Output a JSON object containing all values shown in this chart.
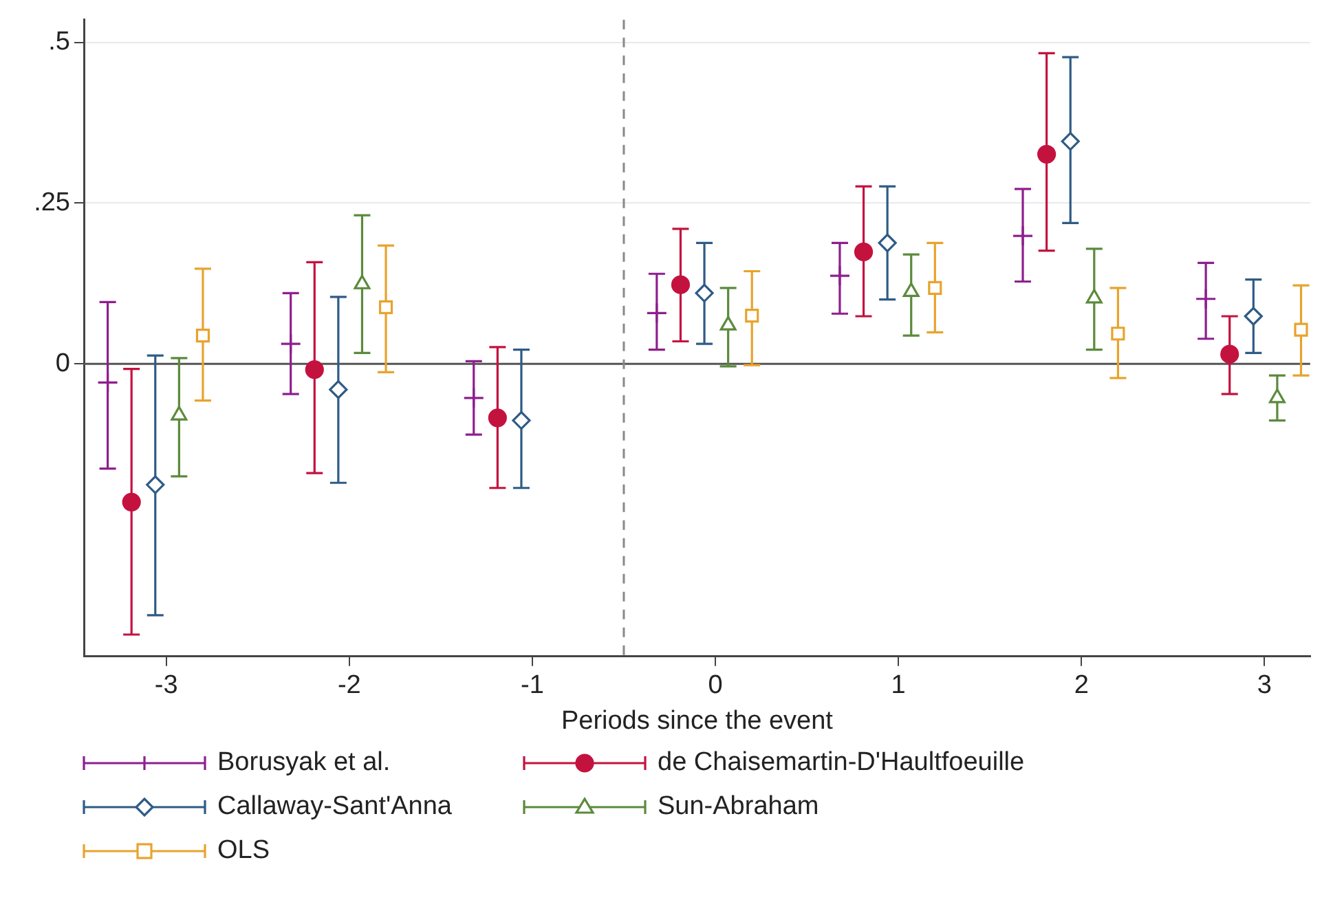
{
  "chart_data": {
    "type": "scatter",
    "xlabel": "Periods since the event",
    "xlim": [
      -3.45,
      3.25
    ],
    "ylim": [
      -0.455,
      0.535
    ],
    "xticks": [
      -3,
      -2,
      -1,
      0,
      1,
      2,
      3
    ],
    "yticks": [
      0,
      {
        "value": 0.25,
        "label": ".25"
      },
      {
        "value": 0.5,
        "label": ".5"
      }
    ],
    "grid": "y",
    "legend": "bottom",
    "ref_lines": [
      {
        "axis": "y",
        "value": 0,
        "color": "#555555",
        "line_style": "solid"
      },
      {
        "axis": "x",
        "value": -0.5,
        "color": "#888888",
        "line_style": "dashed"
      }
    ],
    "series": [
      {
        "name": "Borusyak et al.",
        "color": "#8e1f8e",
        "marker": "cross",
        "x": [
          -3.32,
          -2.32,
          -1.32,
          -0.32,
          0.68,
          1.68,
          2.68
        ],
        "values": [
          -0.029,
          0.031,
          -0.053,
          0.079,
          0.137,
          0.199,
          0.101
        ],
        "errors": [
          [
            -0.163,
            0.096
          ],
          [
            -0.047,
            0.11
          ],
          [
            -0.11,
            0.004
          ],
          [
            0.022,
            0.14
          ],
          [
            0.078,
            0.188
          ],
          [
            0.128,
            0.272
          ],
          [
            0.039,
            0.157
          ]
        ]
      },
      {
        "name": "de Chaisemartin-D'Haultfoeuille",
        "color": "#c4123f",
        "marker": "circle",
        "x": [
          -3.19,
          -2.19,
          -1.19,
          -0.19,
          0.81,
          1.81,
          2.81
        ],
        "values": [
          -0.215,
          -0.009,
          -0.084,
          0.123,
          0.174,
          0.326,
          0.015
        ],
        "errors": [
          [
            -0.421,
            -0.008
          ],
          [
            -0.17,
            0.158
          ],
          [
            -0.193,
            0.026
          ],
          [
            0.035,
            0.21
          ],
          [
            0.074,
            0.276
          ],
          [
            0.176,
            0.483
          ],
          [
            -0.047,
            0.074
          ]
        ]
      },
      {
        "name": "Callaway-Sant'Anna",
        "color": "#2f5b86",
        "marker": "diamond",
        "x": [
          -3.06,
          -2.06,
          -1.06,
          -0.06,
          0.94,
          1.94,
          2.94
        ],
        "values": [
          -0.188,
          -0.04,
          -0.088,
          0.11,
          0.188,
          0.346,
          0.074
        ],
        "errors": [
          [
            -0.391,
            0.013
          ],
          [
            -0.185,
            0.104
          ],
          [
            -0.193,
            0.022
          ],
          [
            0.031,
            0.188
          ],
          [
            0.1,
            0.276
          ],
          [
            0.219,
            0.477
          ],
          [
            0.017,
            0.131
          ]
        ]
      },
      {
        "name": "Sun-Abraham",
        "color": "#5b8a3c",
        "marker": "triangle",
        "x": [
          -2.93,
          -1.93,
          null,
          0.07,
          1.07,
          2.07,
          3.07
        ],
        "values": [
          -0.08,
          0.124,
          null,
          0.06,
          0.112,
          0.102,
          -0.053
        ],
        "errors": [
          [
            -0.175,
            0.009
          ],
          [
            0.017,
            0.231
          ],
          null,
          [
            -0.004,
            0.118
          ],
          [
            0.044,
            0.17
          ],
          [
            0.022,
            0.179
          ],
          [
            -0.088,
            -0.018
          ]
        ]
      },
      {
        "name": "OLS",
        "color": "#e8a32e",
        "marker": "square",
        "x": [
          -2.8,
          -1.8,
          null,
          0.2,
          1.2,
          2.2,
          3.2
        ],
        "values": [
          0.044,
          0.088,
          null,
          0.075,
          0.118,
          0.047,
          0.053
        ],
        "errors": [
          [
            -0.057,
            0.148
          ],
          [
            -0.013,
            0.184
          ],
          null,
          [
            -0.002,
            0.144
          ],
          [
            0.049,
            0.188
          ],
          [
            -0.022,
            0.118
          ],
          [
            -0.018,
            0.122
          ]
        ]
      }
    ]
  }
}
